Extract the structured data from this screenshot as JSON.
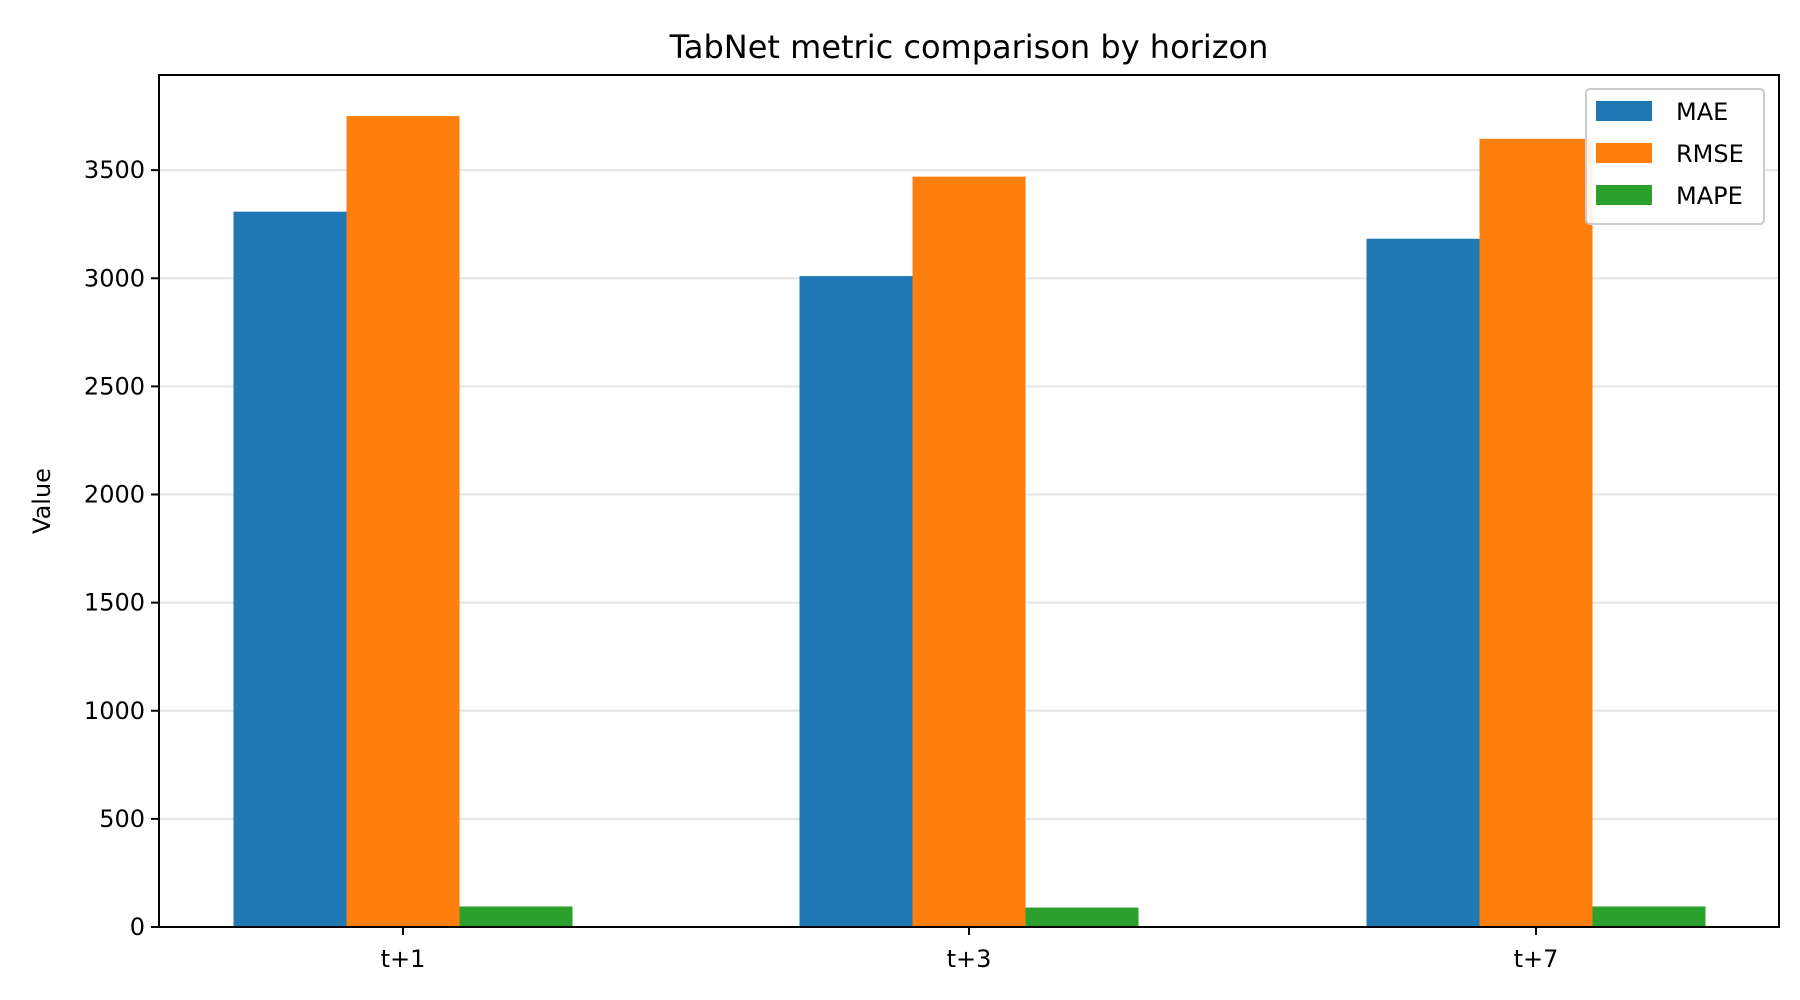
{
  "chart_data": {
    "type": "bar",
    "title": "TabNet metric comparison by horizon",
    "xlabel": "",
    "ylabel": "Value",
    "categories": [
      "t+1",
      "t+3",
      "t+7"
    ],
    "series": [
      {
        "name": "MAE",
        "values": [
          3308,
          3010,
          3183
        ],
        "color": "#1f77b4"
      },
      {
        "name": "RMSE",
        "values": [
          3750,
          3470,
          3645
        ],
        "color": "#ff7f0e"
      },
      {
        "name": "MAPE",
        "values": [
          95,
          90,
          95
        ],
        "color": "#2ca02c"
      }
    ],
    "ylim": [
      0,
      3940
    ],
    "yticks": [
      0,
      500,
      1000,
      1500,
      2000,
      2500,
      3000,
      3500
    ],
    "grid": "y",
    "legend_position": "top-right"
  }
}
